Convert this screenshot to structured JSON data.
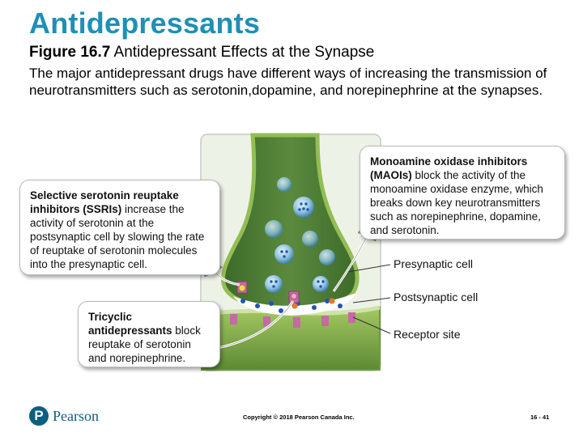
{
  "slide": {
    "title": "Antidepressants",
    "figure_label": "Figure 16.7",
    "figure_title": " Antidepressant Effects at the Synapse",
    "intro": "The major antidepressant drugs have different ways of increasing the transmission of neurotransmitters such as serotonin,dopamine, and norepinephrine at the synapses."
  },
  "callouts": {
    "ssri": {
      "heading": "Selective serotonin reuptake inhibitors (SSRIs)",
      "body": " increase the activity of serotonin at the postsynaptic cell by slowing the rate of reuptake of serotonin molecules into the presynaptic cell."
    },
    "maoi": {
      "heading": "Monoamine oxidase inhibitors (MAOIs)",
      "body": " block the activity of the monoamine oxidase enzyme, which breaks down key neurotransmitters such as norepinephrine, dopamine, and serotonin."
    },
    "tca": {
      "heading": "Tricyclic antidepressants",
      "body": " block reuptake of serotonin and norepinephrine."
    }
  },
  "labels": {
    "presynaptic": "Presynaptic cell",
    "postsynaptic": "Postsynaptic cell",
    "receptor": "Receptor site"
  },
  "colors": {
    "title": "#1f8fb5",
    "membrane": "#8ab34a",
    "cytoplasm": "#3f6b2e",
    "vesicle": "#7fb9d8",
    "neurotransmitter": "#2255b0",
    "receptor": "#c56aa3",
    "drug_orange": "#e07b2a",
    "brand": "#0d5e82"
  },
  "footer": {
    "logo_letter": "P",
    "logo_word": "Pearson",
    "copyright": "Copyright © 2018 Pearson Canada Inc.",
    "slide_number": "16 - 41"
  }
}
